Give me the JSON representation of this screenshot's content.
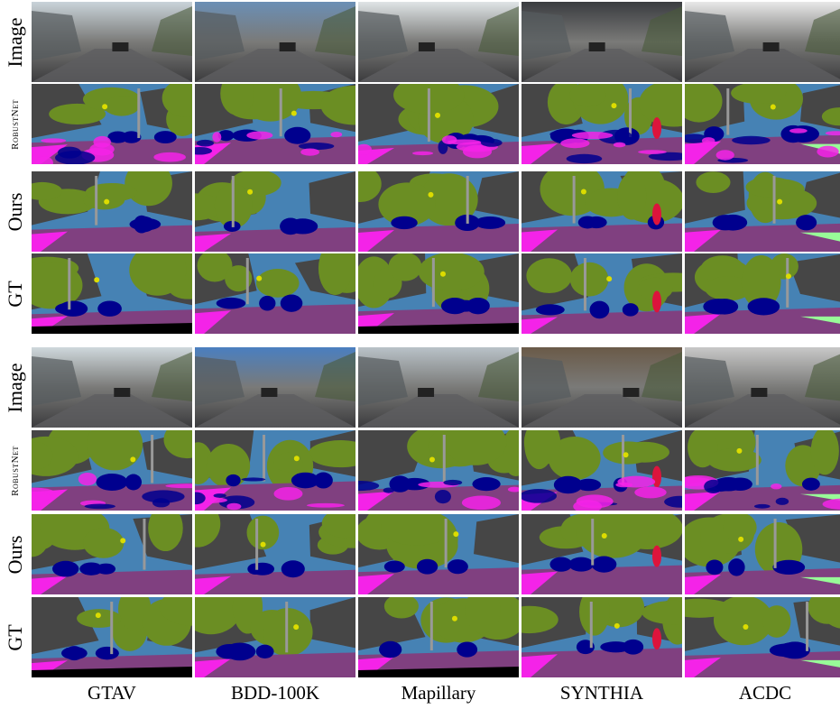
{
  "groups": [
    {
      "rows": [
        "Image",
        "RobustNet",
        "Ours",
        "GT"
      ]
    },
    {
      "rows": [
        "Image",
        "RobustNet",
        "Ours",
        "GT"
      ]
    }
  ],
  "columns": [
    "GTAV",
    "BDD-100K",
    "Mapillary",
    "SYNTHIA",
    "ACDC"
  ]
}
